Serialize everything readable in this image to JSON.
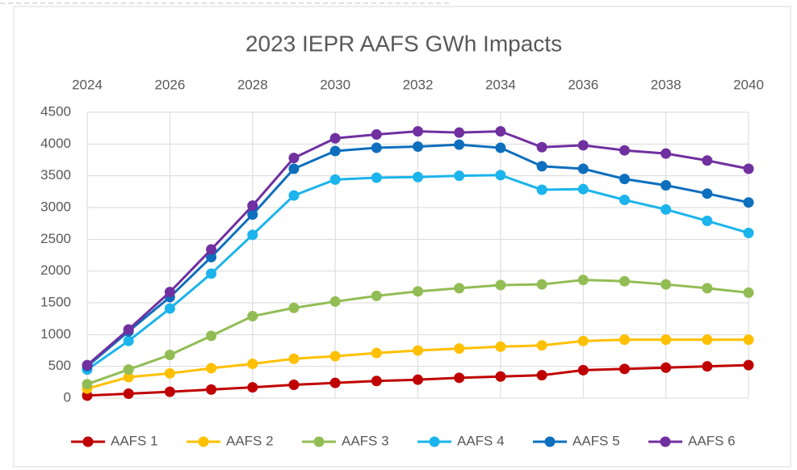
{
  "chart_data": {
    "type": "line",
    "title": "2023 IEPR AAFS GWh Impacts",
    "x": [
      2024,
      2025,
      2026,
      2027,
      2028,
      2029,
      2030,
      2031,
      2032,
      2033,
      2034,
      2035,
      2036,
      2037,
      2038,
      2039,
      2040
    ],
    "series": [
      {
        "name": "AAFS 1",
        "color": "#c00000",
        "values": [
          40,
          70,
          100,
          135,
          170,
          210,
          240,
          270,
          290,
          320,
          340,
          360,
          440,
          460,
          480,
          500,
          520
        ]
      },
      {
        "name": "AAFS 2",
        "color": "#ffc000",
        "values": [
          150,
          330,
          390,
          470,
          540,
          620,
          660,
          710,
          750,
          780,
          810,
          830,
          900,
          920,
          920,
          920,
          920
        ]
      },
      {
        "name": "AAFS 3",
        "color": "#92bd55",
        "values": [
          220,
          450,
          680,
          980,
          1290,
          1420,
          1520,
          1610,
          1680,
          1730,
          1780,
          1790,
          1860,
          1840,
          1790,
          1730,
          1660
        ]
      },
      {
        "name": "AAFS 4",
        "color": "#1bb4ec",
        "values": [
          450,
          900,
          1410,
          1960,
          2570,
          3190,
          3440,
          3470,
          3480,
          3500,
          3510,
          3280,
          3290,
          3120,
          2970,
          2790,
          2600
        ]
      },
      {
        "name": "AAFS 5",
        "color": "#0d6fbd",
        "values": [
          500,
          1050,
          1590,
          2220,
          2890,
          3610,
          3890,
          3940,
          3960,
          3990,
          3940,
          3650,
          3610,
          3450,
          3350,
          3220,
          3080
        ]
      },
      {
        "name": "AAFS 6",
        "color": "#7030a0",
        "values": [
          520,
          1080,
          1670,
          2340,
          3030,
          3780,
          4090,
          4150,
          4200,
          4180,
          4200,
          3950,
          3980,
          3900,
          3850,
          3740,
          3610
        ]
      }
    ],
    "xlim": [
      2024,
      2040
    ],
    "xticks": [
      2024,
      2026,
      2028,
      2030,
      2032,
      2034,
      2036,
      2038,
      2040
    ],
    "ylim": [
      0,
      4500
    ],
    "yticks": [
      0,
      500,
      1000,
      1500,
      2000,
      2500,
      3000,
      3500,
      4000,
      4500
    ],
    "grid": true,
    "legend": "bottom"
  }
}
